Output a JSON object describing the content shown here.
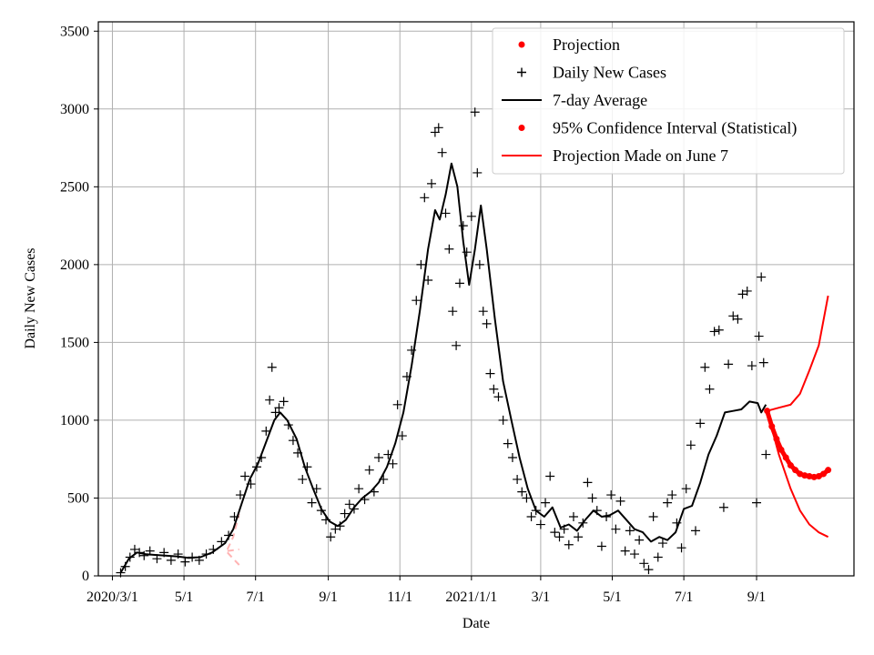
{
  "chart_data": {
    "type": "line",
    "xlabel": "Date",
    "ylabel": "Daily New Cases",
    "ylim": [
      0,
      3560
    ],
    "xlim": [
      "2020-02-18",
      "2021-11-23"
    ],
    "grid": true,
    "legend_position": "top-right",
    "x_ticks": [
      {
        "date": "2020-03-01",
        "label": "2020/3/1"
      },
      {
        "date": "2020-05-01",
        "label": "5/1"
      },
      {
        "date": "2020-07-01",
        "label": "7/1"
      },
      {
        "date": "2020-09-01",
        "label": "9/1"
      },
      {
        "date": "2020-11-01",
        "label": "11/1"
      },
      {
        "date": "2021-01-01",
        "label": "2021/1/1"
      },
      {
        "date": "2021-03-01",
        "label": "3/1"
      },
      {
        "date": "2021-05-01",
        "label": "5/1"
      },
      {
        "date": "2021-07-01",
        "label": "7/1"
      },
      {
        "date": "2021-09-01",
        "label": "9/1"
      }
    ],
    "y_ticks": [
      0,
      500,
      1000,
      1500,
      2000,
      2500,
      3000,
      3500
    ],
    "legend": [
      {
        "label": "Projection",
        "marker": "dot",
        "color": "#ff0000"
      },
      {
        "label": "Daily New Cases",
        "marker": "plus",
        "color": "#000000"
      },
      {
        "label": "7-day Average",
        "marker": "line",
        "color": "#000000"
      },
      {
        "label": "95% Confidence Interval (Statistical)",
        "marker": "dot",
        "color": "#ff0000"
      },
      {
        "label": "Projection Made on June 7",
        "marker": "line",
        "color": "#ff0000"
      }
    ],
    "series": [
      {
        "name": "7-day Average",
        "kind": "line",
        "color": "#000000",
        "points": [
          [
            "2020-03-08",
            20
          ],
          [
            "2020-03-15",
            110
          ],
          [
            "2020-03-22",
            150
          ],
          [
            "2020-03-29",
            140
          ],
          [
            "2020-04-05",
            135
          ],
          [
            "2020-04-15",
            130
          ],
          [
            "2020-04-25",
            125
          ],
          [
            "2020-05-05",
            115
          ],
          [
            "2020-05-15",
            120
          ],
          [
            "2020-05-25",
            150
          ],
          [
            "2020-06-05",
            210
          ],
          [
            "2020-06-12",
            300
          ],
          [
            "2020-06-19",
            460
          ],
          [
            "2020-06-26",
            620
          ],
          [
            "2020-07-03",
            720
          ],
          [
            "2020-07-10",
            860
          ],
          [
            "2020-07-17",
            1000
          ],
          [
            "2020-07-22",
            1050
          ],
          [
            "2020-07-28",
            1000
          ],
          [
            "2020-08-05",
            880
          ],
          [
            "2020-08-12",
            700
          ],
          [
            "2020-08-19",
            560
          ],
          [
            "2020-08-26",
            430
          ],
          [
            "2020-09-02",
            350
          ],
          [
            "2020-09-09",
            320
          ],
          [
            "2020-09-16",
            360
          ],
          [
            "2020-09-23",
            440
          ],
          [
            "2020-09-30",
            500
          ],
          [
            "2020-10-07",
            540
          ],
          [
            "2020-10-14",
            600
          ],
          [
            "2020-10-21",
            700
          ],
          [
            "2020-10-28",
            850
          ],
          [
            "2020-11-04",
            1050
          ],
          [
            "2020-11-11",
            1350
          ],
          [
            "2020-11-18",
            1700
          ],
          [
            "2020-11-25",
            2100
          ],
          [
            "2020-12-01",
            2350
          ],
          [
            "2020-12-05",
            2290
          ],
          [
            "2020-12-10",
            2450
          ],
          [
            "2020-12-15",
            2650
          ],
          [
            "2020-12-20",
            2500
          ],
          [
            "2020-12-25",
            2150
          ],
          [
            "2020-12-30",
            1870
          ],
          [
            "2021-01-04",
            2100
          ],
          [
            "2021-01-09",
            2380
          ],
          [
            "2021-01-14",
            2100
          ],
          [
            "2021-01-21",
            1650
          ],
          [
            "2021-01-28",
            1250
          ],
          [
            "2021-02-04",
            1000
          ],
          [
            "2021-02-11",
            760
          ],
          [
            "2021-02-18",
            560
          ],
          [
            "2021-02-25",
            420
          ],
          [
            "2021-03-04",
            380
          ],
          [
            "2021-03-11",
            440
          ],
          [
            "2021-03-18",
            310
          ],
          [
            "2021-03-25",
            330
          ],
          [
            "2021-04-01",
            290
          ],
          [
            "2021-04-08",
            360
          ],
          [
            "2021-04-15",
            420
          ],
          [
            "2021-04-22",
            380
          ],
          [
            "2021-04-29",
            390
          ],
          [
            "2021-05-06",
            420
          ],
          [
            "2021-05-13",
            360
          ],
          [
            "2021-05-20",
            300
          ],
          [
            "2021-05-27",
            280
          ],
          [
            "2021-06-03",
            220
          ],
          [
            "2021-06-10",
            250
          ],
          [
            "2021-06-17",
            230
          ],
          [
            "2021-06-24",
            280
          ],
          [
            "2021-07-01",
            430
          ],
          [
            "2021-07-08",
            450
          ],
          [
            "2021-07-15",
            600
          ],
          [
            "2021-07-22",
            780
          ],
          [
            "2021-07-29",
            900
          ],
          [
            "2021-08-05",
            1050
          ],
          [
            "2021-08-12",
            1060
          ],
          [
            "2021-08-19",
            1070
          ],
          [
            "2021-08-26",
            1120
          ],
          [
            "2021-09-02",
            1110
          ],
          [
            "2021-09-05",
            1050
          ],
          [
            "2021-09-09",
            1100
          ]
        ]
      },
      {
        "name": "Daily New Cases",
        "kind": "scatter-plus",
        "color": "#000000",
        "points": [
          [
            "2020-03-08",
            20
          ],
          [
            "2020-03-12",
            60
          ],
          [
            "2020-03-16",
            120
          ],
          [
            "2020-03-20",
            170
          ],
          [
            "2020-03-24",
            150
          ],
          [
            "2020-03-28",
            130
          ],
          [
            "2020-04-02",
            160
          ],
          [
            "2020-04-08",
            110
          ],
          [
            "2020-04-14",
            150
          ],
          [
            "2020-04-20",
            100
          ],
          [
            "2020-04-26",
            140
          ],
          [
            "2020-05-02",
            90
          ],
          [
            "2020-05-08",
            120
          ],
          [
            "2020-05-14",
            100
          ],
          [
            "2020-05-20",
            140
          ],
          [
            "2020-05-26",
            170
          ],
          [
            "2020-06-02",
            220
          ],
          [
            "2020-06-08",
            260
          ],
          [
            "2020-06-13",
            380
          ],
          [
            "2020-06-18",
            520
          ],
          [
            "2020-06-22",
            640
          ],
          [
            "2020-06-27",
            590
          ],
          [
            "2020-07-02",
            700
          ],
          [
            "2020-07-06",
            760
          ],
          [
            "2020-07-10",
            930
          ],
          [
            "2020-07-13",
            1130
          ],
          [
            "2020-07-15",
            1340
          ],
          [
            "2020-07-18",
            1050
          ],
          [
            "2020-07-21",
            1080
          ],
          [
            "2020-07-25",
            1120
          ],
          [
            "2020-07-29",
            970
          ],
          [
            "2020-08-02",
            870
          ],
          [
            "2020-08-06",
            790
          ],
          [
            "2020-08-10",
            620
          ],
          [
            "2020-08-14",
            700
          ],
          [
            "2020-08-18",
            470
          ],
          [
            "2020-08-22",
            560
          ],
          [
            "2020-08-26",
            420
          ],
          [
            "2020-08-30",
            360
          ],
          [
            "2020-09-03",
            250
          ],
          [
            "2020-09-07",
            300
          ],
          [
            "2020-09-11",
            320
          ],
          [
            "2020-09-15",
            400
          ],
          [
            "2020-09-19",
            460
          ],
          [
            "2020-09-23",
            430
          ],
          [
            "2020-09-27",
            560
          ],
          [
            "2020-10-02",
            490
          ],
          [
            "2020-10-06",
            680
          ],
          [
            "2020-10-10",
            540
          ],
          [
            "2020-10-14",
            760
          ],
          [
            "2020-10-18",
            620
          ],
          [
            "2020-10-22",
            780
          ],
          [
            "2020-10-26",
            720
          ],
          [
            "2020-10-30",
            1100
          ],
          [
            "2020-11-03",
            900
          ],
          [
            "2020-11-07",
            1280
          ],
          [
            "2020-11-11",
            1450
          ],
          [
            "2020-11-15",
            1770
          ],
          [
            "2020-11-19",
            2000
          ],
          [
            "2020-11-22",
            2430
          ],
          [
            "2020-11-25",
            1900
          ],
          [
            "2020-11-28",
            2520
          ],
          [
            "2020-12-01",
            2850
          ],
          [
            "2020-12-04",
            2880
          ],
          [
            "2020-12-07",
            2720
          ],
          [
            "2020-12-10",
            2330
          ],
          [
            "2020-12-13",
            2100
          ],
          [
            "2020-12-16",
            1700
          ],
          [
            "2020-12-19",
            1480
          ],
          [
            "2020-12-22",
            1880
          ],
          [
            "2020-12-25",
            2250
          ],
          [
            "2020-12-28",
            2080
          ],
          [
            "2021-01-01",
            2310
          ],
          [
            "2021-01-04",
            2980
          ],
          [
            "2021-01-06",
            2590
          ],
          [
            "2021-01-08",
            2000
          ],
          [
            "2021-01-11",
            1700
          ],
          [
            "2021-01-14",
            1620
          ],
          [
            "2021-01-17",
            1300
          ],
          [
            "2021-01-20",
            1200
          ],
          [
            "2021-01-24",
            1150
          ],
          [
            "2021-01-28",
            1000
          ],
          [
            "2021-02-01",
            850
          ],
          [
            "2021-02-05",
            760
          ],
          [
            "2021-02-09",
            620
          ],
          [
            "2021-02-13",
            540
          ],
          [
            "2021-02-17",
            500
          ],
          [
            "2021-02-21",
            380
          ],
          [
            "2021-02-25",
            420
          ],
          [
            "2021-03-01",
            330
          ],
          [
            "2021-03-05",
            470
          ],
          [
            "2021-03-09",
            640
          ],
          [
            "2021-03-13",
            280
          ],
          [
            "2021-03-17",
            250
          ],
          [
            "2021-03-21",
            300
          ],
          [
            "2021-03-25",
            200
          ],
          [
            "2021-03-29",
            380
          ],
          [
            "2021-04-02",
            250
          ],
          [
            "2021-04-06",
            340
          ],
          [
            "2021-04-10",
            600
          ],
          [
            "2021-04-14",
            500
          ],
          [
            "2021-04-18",
            420
          ],
          [
            "2021-04-22",
            190
          ],
          [
            "2021-04-26",
            380
          ],
          [
            "2021-04-30",
            520
          ],
          [
            "2021-05-04",
            300
          ],
          [
            "2021-05-08",
            480
          ],
          [
            "2021-05-12",
            160
          ],
          [
            "2021-05-16",
            290
          ],
          [
            "2021-05-20",
            140
          ],
          [
            "2021-05-24",
            230
          ],
          [
            "2021-05-28",
            80
          ],
          [
            "2021-06-01",
            40
          ],
          [
            "2021-06-05",
            380
          ],
          [
            "2021-06-09",
            120
          ],
          [
            "2021-06-13",
            210
          ],
          [
            "2021-06-17",
            470
          ],
          [
            "2021-06-21",
            520
          ],
          [
            "2021-06-25",
            340
          ],
          [
            "2021-06-29",
            180
          ],
          [
            "2021-07-03",
            560
          ],
          [
            "2021-07-07",
            840
          ],
          [
            "2021-07-11",
            290
          ],
          [
            "2021-07-15",
            980
          ],
          [
            "2021-07-19",
            1340
          ],
          [
            "2021-07-23",
            1200
          ],
          [
            "2021-07-27",
            1570
          ],
          [
            "2021-07-31",
            1580
          ],
          [
            "2021-08-04",
            440
          ],
          [
            "2021-08-08",
            1360
          ],
          [
            "2021-08-12",
            1670
          ],
          [
            "2021-08-16",
            1650
          ],
          [
            "2021-08-20",
            1810
          ],
          [
            "2021-08-24",
            1830
          ],
          [
            "2021-08-28",
            1350
          ],
          [
            "2021-09-01",
            470
          ],
          [
            "2021-09-03",
            1540
          ],
          [
            "2021-09-05",
            1920
          ],
          [
            "2021-09-07",
            1370
          ],
          [
            "2021-09-09",
            780
          ]
        ]
      },
      {
        "name": "Projection",
        "kind": "red-dots",
        "color": "#ff0000",
        "points": [
          [
            "2021-09-10",
            1060
          ],
          [
            "2021-09-14",
            960
          ],
          [
            "2021-09-18",
            880
          ],
          [
            "2021-09-22",
            810
          ],
          [
            "2021-09-26",
            760
          ],
          [
            "2021-09-30",
            710
          ],
          [
            "2021-10-04",
            680
          ],
          [
            "2021-10-08",
            655
          ],
          [
            "2021-10-12",
            645
          ],
          [
            "2021-10-16",
            640
          ],
          [
            "2021-10-20",
            635
          ],
          [
            "2021-10-24",
            640
          ],
          [
            "2021-10-28",
            655
          ],
          [
            "2021-11-01",
            680
          ]
        ]
      },
      {
        "name": "95% Confidence Interval (Statistical)",
        "kind": "red-lines",
        "color": "#ff0000",
        "upper": [
          [
            "2021-09-10",
            1060
          ],
          [
            "2021-09-20",
            1080
          ],
          [
            "2021-09-30",
            1100
          ],
          [
            "2021-10-08",
            1170
          ],
          [
            "2021-10-16",
            1320
          ],
          [
            "2021-10-24",
            1480
          ],
          [
            "2021-11-01",
            1800
          ]
        ],
        "lower": [
          [
            "2021-09-10",
            1060
          ],
          [
            "2021-09-20",
            780
          ],
          [
            "2021-09-30",
            560
          ],
          [
            "2021-10-08",
            420
          ],
          [
            "2021-10-16",
            330
          ],
          [
            "2021-10-24",
            280
          ],
          [
            "2021-11-01",
            250
          ]
        ]
      },
      {
        "name": "Projection Made on June 7",
        "kind": "faded-dashed",
        "color": "#ffb3b3",
        "center": [
          [
            "2020-06-07",
            160
          ],
          [
            "2020-06-12",
            165
          ],
          [
            "2020-06-17",
            170
          ]
        ],
        "upper": [
          [
            "2020-06-07",
            170
          ],
          [
            "2020-06-12",
            250
          ],
          [
            "2020-06-17",
            400
          ]
        ],
        "lower": [
          [
            "2020-06-07",
            150
          ],
          [
            "2020-06-12",
            110
          ],
          [
            "2020-06-17",
            70
          ]
        ]
      }
    ]
  }
}
